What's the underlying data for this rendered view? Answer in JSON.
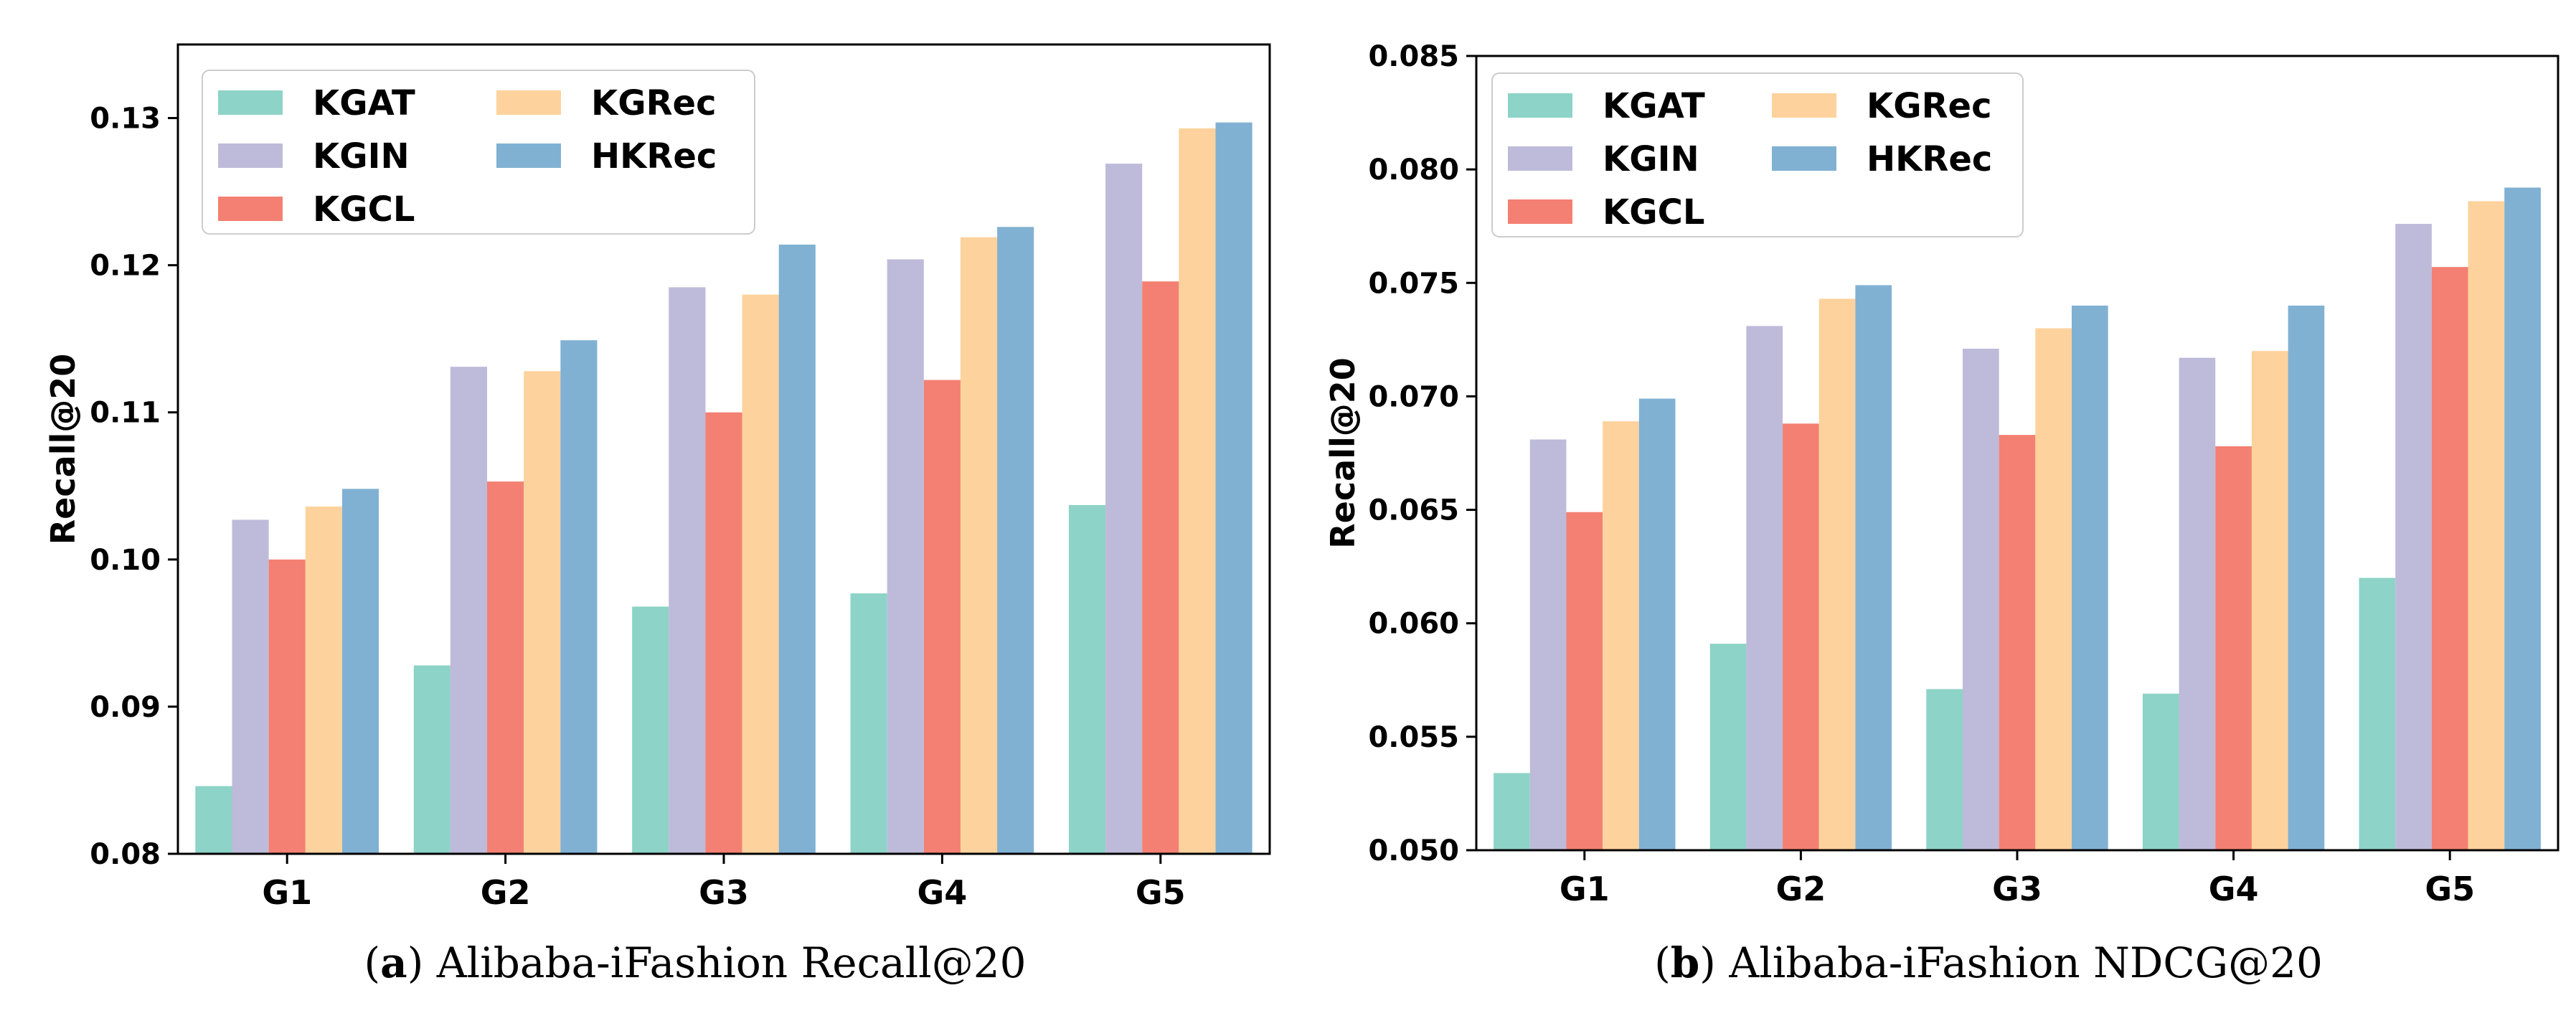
{
  "chart_data": [
    {
      "type": "bar",
      "panel_letter": "a",
      "caption": "Alibaba-iFashion Recall@20",
      "ylabel": "Recall@20",
      "xlabel": "",
      "ylim": [
        0.08,
        0.135
      ],
      "yticks": [
        "0.08",
        "0.09",
        "0.10",
        "0.11",
        "0.12",
        "0.13"
      ],
      "ytick_values": [
        0.08,
        0.09,
        0.1,
        0.11,
        0.12,
        0.13
      ],
      "categories": [
        "G1",
        "G2",
        "G3",
        "G4",
        "G5"
      ],
      "legend_position": "upper-left",
      "series": [
        {
          "name": "KGAT",
          "color": "#8dd3c7",
          "values": [
            0.0846,
            0.0928,
            0.0968,
            0.0977,
            0.1037
          ]
        },
        {
          "name": "KGIN",
          "color": "#bebada",
          "values": [
            0.1027,
            0.1131,
            0.1185,
            0.1204,
            0.1269
          ]
        },
        {
          "name": "KGCL",
          "color": "#f38072",
          "values": [
            0.1,
            0.1053,
            0.11,
            0.1122,
            0.1189
          ]
        },
        {
          "name": "KGRec",
          "color": "#fdd29c",
          "values": [
            0.1036,
            0.1128,
            0.118,
            0.1219,
            0.1293
          ]
        },
        {
          "name": "HKRec",
          "color": "#80b1d3",
          "values": [
            0.1048,
            0.1149,
            0.1214,
            0.1226,
            0.1297
          ]
        }
      ]
    },
    {
      "type": "bar",
      "panel_letter": "b",
      "caption": "Alibaba-iFashion NDCG@20",
      "ylabel": "Recall@20",
      "xlabel": "",
      "ylim": [
        0.05,
        0.085
      ],
      "yticks": [
        "0.050",
        "0.055",
        "0.060",
        "0.065",
        "0.070",
        "0.075",
        "0.080",
        "0.085"
      ],
      "ytick_values": [
        0.05,
        0.055,
        0.06,
        0.065,
        0.07,
        0.075,
        0.08,
        0.085
      ],
      "categories": [
        "G1",
        "G2",
        "G3",
        "G4",
        "G5"
      ],
      "legend_position": "upper-left",
      "series": [
        {
          "name": "KGAT",
          "color": "#8dd3c7",
          "values": [
            0.0534,
            0.0591,
            0.0571,
            0.0569,
            0.062
          ]
        },
        {
          "name": "KGIN",
          "color": "#bebada",
          "values": [
            0.0681,
            0.0731,
            0.0721,
            0.0717,
            0.0776
          ]
        },
        {
          "name": "KGCL",
          "color": "#f38072",
          "values": [
            0.0649,
            0.0688,
            0.0683,
            0.0678,
            0.0757
          ]
        },
        {
          "name": "KGRec",
          "color": "#fdd29c",
          "values": [
            0.0689,
            0.0743,
            0.073,
            0.072,
            0.0786
          ]
        },
        {
          "name": "HKRec",
          "color": "#80b1d3",
          "values": [
            0.0699,
            0.0749,
            0.074,
            0.074,
            0.0792
          ]
        }
      ]
    }
  ]
}
